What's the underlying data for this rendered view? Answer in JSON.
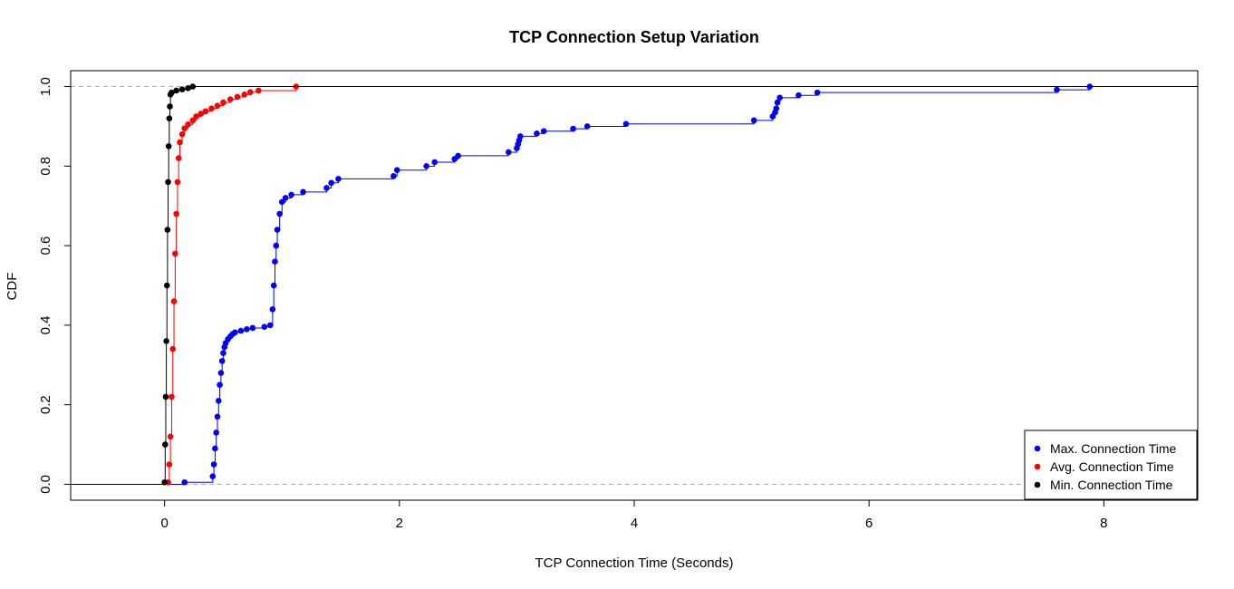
{
  "chart_data": {
    "type": "line",
    "title": "TCP Connection Setup Variation",
    "xlabel": "TCP Connection Time (Seconds)",
    "ylabel": "CDF",
    "xlim": [
      -0.8,
      8.8
    ],
    "ylim": [
      -0.04,
      1.04
    ],
    "xticks": [
      "0",
      "2",
      "4",
      "6",
      "8"
    ],
    "yticks": [
      "0.0",
      "0.2",
      "0.4",
      "0.6",
      "0.8",
      "1.0"
    ],
    "reference_lines": [
      0,
      1
    ],
    "grid": false,
    "legend_position": "bottom-right",
    "series": [
      {
        "name": "Max. Connection Time",
        "color": "#0000ff",
        "x": [
          0.17,
          0.41,
          0.42,
          0.43,
          0.44,
          0.45,
          0.46,
          0.47,
          0.48,
          0.49,
          0.5,
          0.51,
          0.52,
          0.54,
          0.56,
          0.58,
          0.6,
          0.65,
          0.7,
          0.75,
          0.85,
          0.9,
          0.92,
          0.93,
          0.94,
          0.95,
          0.96,
          0.98,
          1.0,
          1.03,
          1.08,
          1.18,
          1.38,
          1.42,
          1.48,
          1.95,
          1.98,
          2.23,
          2.3,
          2.47,
          2.5,
          2.93,
          3.0,
          3.01,
          3.02,
          3.03,
          3.17,
          3.23,
          3.48,
          3.6,
          3.93,
          5.02,
          5.18,
          5.2,
          5.21,
          5.22,
          5.24,
          5.4,
          5.56,
          7.6,
          7.88
        ],
        "y": [
          0.005,
          0.02,
          0.05,
          0.09,
          0.13,
          0.17,
          0.21,
          0.25,
          0.28,
          0.31,
          0.33,
          0.345,
          0.355,
          0.365,
          0.372,
          0.378,
          0.382,
          0.386,
          0.39,
          0.393,
          0.396,
          0.4,
          0.44,
          0.5,
          0.56,
          0.6,
          0.64,
          0.68,
          0.71,
          0.72,
          0.728,
          0.735,
          0.745,
          0.758,
          0.768,
          0.775,
          0.79,
          0.8,
          0.81,
          0.818,
          0.826,
          0.835,
          0.845,
          0.855,
          0.865,
          0.875,
          0.882,
          0.888,
          0.894,
          0.9,
          0.906,
          0.915,
          0.925,
          0.935,
          0.945,
          0.96,
          0.972,
          0.978,
          0.985,
          0.992,
          1.0
        ]
      },
      {
        "name": "Avg. Connection Time",
        "color": "#ff0000",
        "x": [
          0.03,
          0.04,
          0.05,
          0.06,
          0.07,
          0.08,
          0.09,
          0.1,
          0.11,
          0.12,
          0.13,
          0.15,
          0.17,
          0.2,
          0.24,
          0.27,
          0.31,
          0.35,
          0.4,
          0.45,
          0.5,
          0.56,
          0.62,
          0.68,
          0.73,
          0.8,
          1.12
        ],
        "y": [
          0.005,
          0.05,
          0.12,
          0.22,
          0.34,
          0.46,
          0.58,
          0.68,
          0.76,
          0.82,
          0.86,
          0.88,
          0.895,
          0.905,
          0.915,
          0.925,
          0.932,
          0.938,
          0.945,
          0.952,
          0.96,
          0.968,
          0.974,
          0.98,
          0.986,
          0.99,
          1.0
        ]
      },
      {
        "name": "Min. Connection Time",
        "color": "#000000",
        "x": [
          0.0,
          0.005,
          0.01,
          0.015,
          0.02,
          0.025,
          0.03,
          0.035,
          0.04,
          0.045,
          0.05,
          0.06,
          0.1,
          0.15,
          0.2,
          0.24
        ],
        "y": [
          0.005,
          0.1,
          0.22,
          0.36,
          0.5,
          0.64,
          0.76,
          0.85,
          0.92,
          0.95,
          0.98,
          0.985,
          0.99,
          0.993,
          0.996,
          1.0
        ]
      }
    ]
  }
}
